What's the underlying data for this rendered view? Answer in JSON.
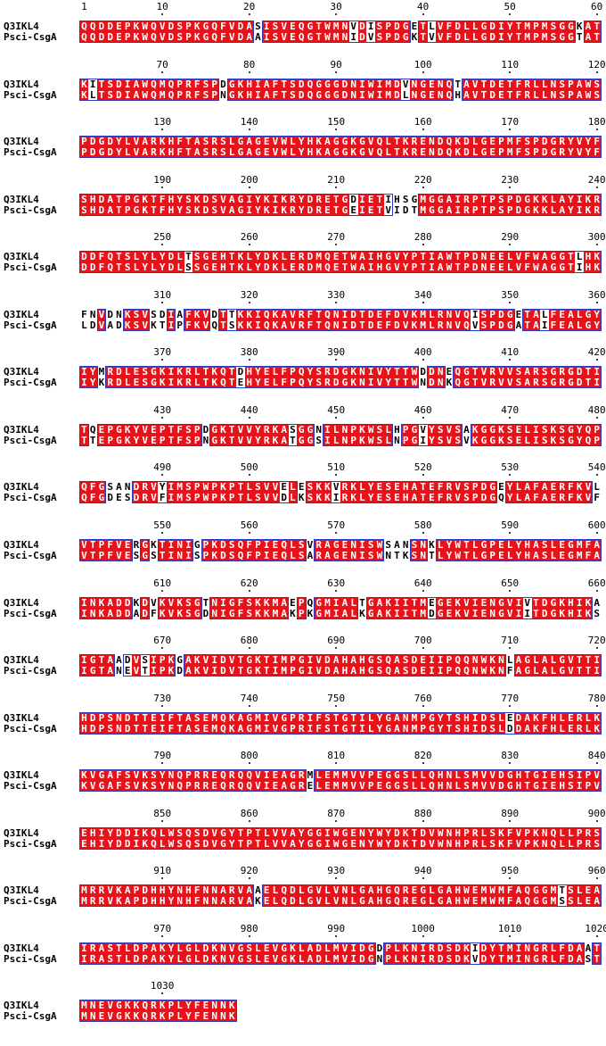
{
  "alignment": {
    "names": [
      "Q3IKL4",
      "Psci-CsgA"
    ],
    "blocks": [
      {
        "start": 1,
        "s1": "QQDDEPKWQVDSPKGQFVDASISVEQGTWMNVDISPDGETLVFDLLGDIYTMPMSGGKAT",
        "s2": "QQDDEPKWQVDSPKGQFVDAAISVEQGTWMNIDVSPDGKTVVFDLLGDIYTMPMSGGTAT",
        "labels": [
          "1",
          "10",
          "20",
          "30",
          "40",
          "50",
          "60"
        ]
      },
      {
        "start": 61,
        "s1": "KITSDIAWQMQPRFSPDGKHIAFTSDQGGGDNIWIMDVNGENQTAVTDETFRLLNSPAWS",
        "s2": "KLTSDIAWQMQPRFSPNGKHIAFTSDQGGGDNIWIMDLNGENQHAVTDETFRLLNSPAWS",
        "labels": [
          "70",
          "80",
          "90",
          "100",
          "110",
          "120"
        ]
      },
      {
        "start": 121,
        "s1": "PDGDYLVARKHFTASRSLGAGEVWLYHKAGGKGVQLTKRENDQKDLGEPMFSPDGRYVYF",
        "s2": "PDGDYLVARKHFTASRSLGAGEVWLYHKAGGKGVQLTKRENDQKDLGEPMFSPDGRYVYF",
        "labels": [
          "130",
          "140",
          "150",
          "160",
          "170",
          "180"
        ]
      },
      {
        "start": 181,
        "s1": "SHDATPGKTFHYSKDSVAGIYKIKRYDRETGDIETIHSGMGGAIRPTPSPDGKKLAYIKR",
        "s2": "SHDATPGKTFHYSKDSVAGIYKIKRYDRETGEIETVIDTMGGAIRPTPSPDGKKLAYIKR",
        "labels": [
          "190",
          "200",
          "210",
          "220",
          "230",
          "240"
        ]
      },
      {
        "start": 241,
        "s1": "DDFQTSLYLYDLTSGEHTKLYDKLERDMQETWAIHGVYPTIAWTPDNEELVFWAGGTLHK",
        "s2": "DDFQTSLYLYDLSSGEHTKLYDKLERDMQETWAIHGVYPTIAWTPDNEELVFWAGGTIHK",
        "labels": [
          "250",
          "260",
          "270",
          "280",
          "290",
          "300"
        ]
      },
      {
        "start": 301,
        "s1": "FNVDNKSVSDIAFKVDTTKKIQKAVRFTQNIDTDEFDVKMLRNVQISPDGETALFEALGY",
        "s2": "LDVADKSVKTIPFKVQTSKKIQKAVRFTQNIDTDEFDVKMLRNVQVSPDGATAIFEALGY",
        "labels": [
          "310",
          "320",
          "330",
          "340",
          "350",
          "360"
        ]
      },
      {
        "start": 361,
        "s1": "IYMRDLESGKIKRLTKQTDHYELFPQYSRDGKNIVYTTWDDNEQGTVRVVSARSGRGDTI",
        "s2": "IYKRDLESGKIKRLTKQTEHYELFPQYSRDGKNIVYTTWNDNKQGTVRVVSARSGRGDTI",
        "labels": [
          "370",
          "380",
          "390",
          "400",
          "410",
          "420"
        ]
      },
      {
        "start": 421,
        "s1": "TQEPGKYVEPTFSPDGKTVVYRKASGGNILNPKWSLHPGVYSVSAKGGKSELISKSGYQP",
        "s2": "TTEPGKYVEPTFSPNGKTVVYRKATGGSILNPKWSLNPGIYSVSVKGGKSELISKSGYQP",
        "labels": [
          "430",
          "440",
          "450",
          "460",
          "470",
          "480"
        ]
      },
      {
        "start": 481,
        "s1": "QFGSANDRVYIMSPWPKPTLSVVELESKKVRKLYESEHATEFRVSPDGEYLAFAERFKVL",
        "s2": "QFGDESDRVFIMSPWPKPTLSVVDLKSKKIRKLYESEHATEFRVSPDGQYLAFAERFKVF",
        "labels": [
          "490",
          "500",
          "510",
          "520",
          "530",
          "540"
        ]
      },
      {
        "start": 541,
        "s1": "VTPFVERGKTINIGPKDSQFPIEQLSVRAGENISWSANSNKLYWTLGPELYHASLEGMFA",
        "s2": "VTPFVESGSTINISPKDSQFPIEQLSARAGENISWNTKSNTLYWTLGPELYHASLEGMFA",
        "labels": [
          "550",
          "560",
          "570",
          "580",
          "590",
          "600"
        ]
      },
      {
        "start": 601,
        "s1": "INKADDKDVKVKSGTNIGFSKKMAEPQGMIALTGAKIITMEGEKVIENGVIVTDGKHIKA",
        "s2": "INKADDADFKVKSGDNIGFSKKMAKPKGMIALKGAKIITMDGEKVIENGVIITDGKHIKS",
        "labels": [
          "610",
          "620",
          "630",
          "640",
          "650",
          "660"
        ]
      },
      {
        "start": 661,
        "s1": "IGTAADVSIPKGAKVIDVTGKTIMPGIVDAHAHGSQASDEIIPQQNWKNLAGLALGVTTI",
        "s2": "IGTANEVTIPKDAKVIDVTGKTIMPGIVDAHAHGSQASDEIIPQQNWKNFAGLALGVTTI",
        "labels": [
          "670",
          "680",
          "690",
          "700",
          "710",
          "720"
        ]
      },
      {
        "start": 721,
        "s1": "HDPSNDTTEIFTASEMQKAGMIVGPRIFSTGTILYGANMPGYTSHIDSLEDAKFHLERLK",
        "s2": "HDPSNDTTEIFTASEMQKAGMIVGPRIFSTGTILYGANMPGYTSHIDSLDDAKFHLERLK",
        "labels": [
          "730",
          "740",
          "750",
          "760",
          "770",
          "780"
        ]
      },
      {
        "start": 781,
        "s1": "KVGAFSVKSYNQPRREQRQQVIEAGRMLEMMVVPEGGSLLQHNLSMVVDGHTGIEHSIPV",
        "s2": "KVGAFSVKSYNQPRREQRQQVIEAGRELEMMVVPEGGSLLQHNLSMVVDGHTGIEHSIPV",
        "labels": [
          "790",
          "800",
          "810",
          "820",
          "830",
          "840"
        ]
      },
      {
        "start": 841,
        "s1": "EHIYDDIKQLWSQSDVGYTPTLVVAYGGIWGENYWYDKTDVWNHPRLSKFVPKNQLLPRS",
        "s2": "EHIYDDIKQLWSQSDVGYTPTLVVAYGGIWGENYWYDKTDVWNHPRLSKFVPKNQLLPRS",
        "labels": [
          "850",
          "860",
          "870",
          "880",
          "890",
          "900"
        ]
      },
      {
        "start": 901,
        "s1": "MRRVKAPDHHYNHFNNARVAAELQDLGVLVNLGAHGQREGLGAHWEMWMFAQGGMTSLEA",
        "s2": "MRRVKAPDHHYNHFNNARVAKELQDLGVLVNLGAHGQREGLGAHWEMWMFAQGGMSSLEA",
        "labels": [
          "910",
          "920",
          "930",
          "940",
          "950",
          "960"
        ]
      },
      {
        "start": 961,
        "s1": "IRASTLDPAKYLGLDKNVGSLEVGKLADLMVIDGDPLKNIRDSDKIDYTMINGRLFDAAT",
        "s2": "IRASTLDPAKYLGLDKNVGSLEVGKLADLMVIDGNPLKNIRDSDKVDYTMINGRLFDAST",
        "labels": [
          "970",
          "980",
          "990",
          "1000",
          "1010",
          "1020"
        ]
      },
      {
        "start": 1021,
        "s1": "MNEVGKKQRKPLYFENNK",
        "s2": "MNEVGKKQRKPLYFENNK",
        "labels": [
          "1030"
        ]
      }
    ]
  }
}
